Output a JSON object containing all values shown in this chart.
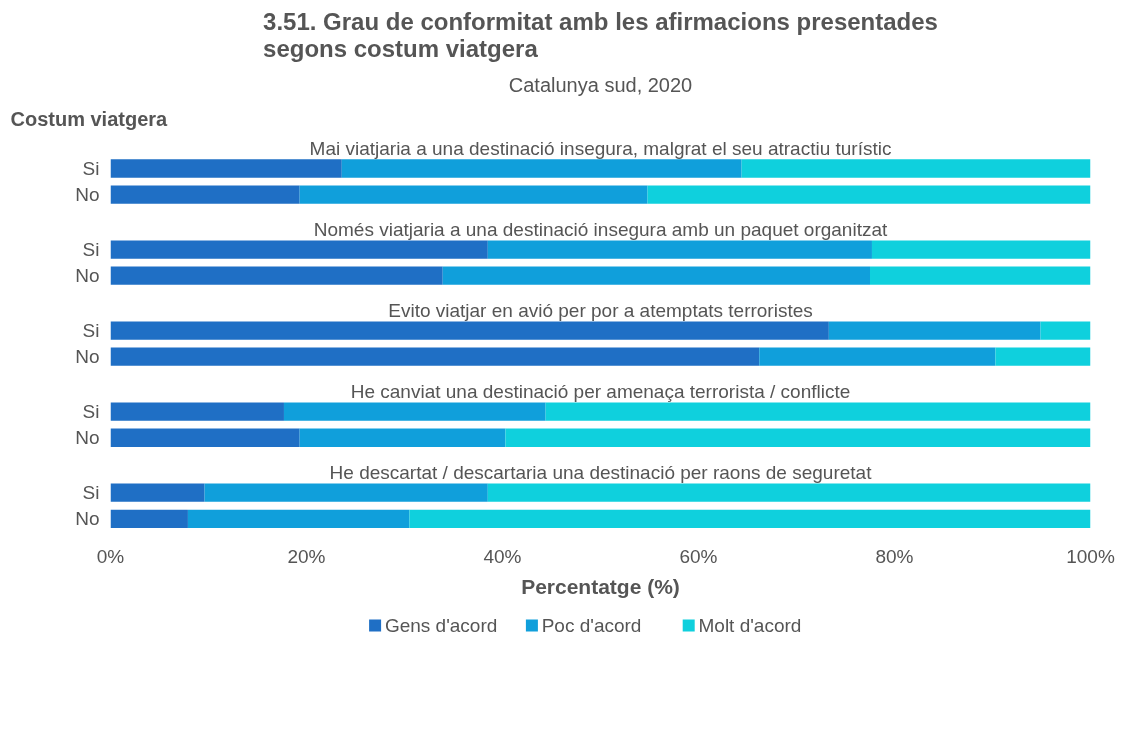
{
  "chart_data": {
    "type": "bar",
    "orientation": "horizontal",
    "stacked": true,
    "title": "3.51. Grau de conformitat amb les afirmacions presentades\nsegons costum viatgera",
    "subtitle": "Catalunya sud, 2020",
    "ylabel": "Costum viatgera",
    "xlabel": "Percentatge (%)",
    "annotations": [
      "Mai viatjaria a una destinació insegura, malgrat el seu atractiu turístic",
      "Només viatjaria a una destinació insegura amb un paquet organitzat",
      "Evito viatjar en avió per por a atemptats terroristes",
      "He canviat una destinació per amenaça terrorista / conflicte",
      "He descartat / descartaria una destinació per raons de seguretat"
    ],
    "categories": [
      "Si",
      "No",
      "Si",
      "No",
      "Si",
      "No",
      "Si",
      "No",
      "Si",
      "No"
    ],
    "series": [
      {
        "name": "Gens d'acord",
        "color": "#1f6fc5",
        "values": [
          23.6,
          19.3,
          38.5,
          33.9,
          73.3,
          66.2,
          17.7,
          19.3,
          9.6,
          7.9
        ]
      },
      {
        "name": "Poc d'acord",
        "color": "#109fdb",
        "values": [
          40.8,
          35.5,
          39.2,
          43.6,
          21.6,
          24.1,
          26.7,
          21.0,
          28.9,
          22.6
        ]
      },
      {
        "name": "Molt d'acord",
        "color": "#0fd0dd",
        "values": [
          35.6,
          45.2,
          22.3,
          22.5,
          5.1,
          9.7,
          55.6,
          59.7,
          61.5,
          69.5
        ]
      }
    ],
    "xlim": [
      0,
      100
    ],
    "xticks": [
      {
        "value": 0,
        "label": "0%"
      },
      {
        "value": 20,
        "label": "20%"
      },
      {
        "value": 40,
        "label": "40%"
      },
      {
        "value": 60,
        "label": "60%"
      },
      {
        "value": 80,
        "label": "80%"
      },
      {
        "value": 100,
        "label": "100%"
      }
    ],
    "grid": false,
    "legend": "bottom"
  }
}
